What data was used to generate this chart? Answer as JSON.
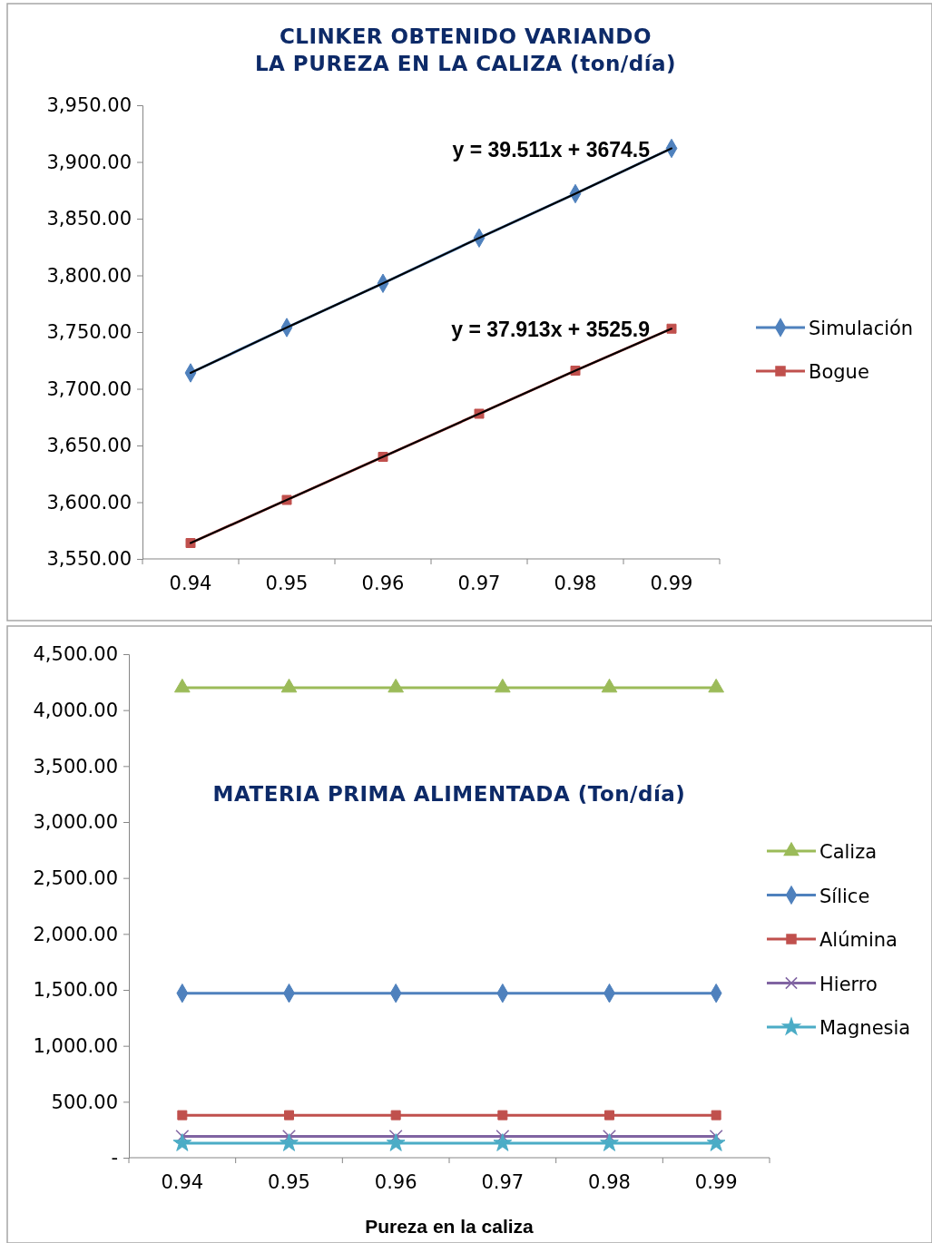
{
  "chart_data": [
    {
      "type": "line",
      "title": "CLINKER OBTENIDO VARIANDO\nLA PUREZA EN LA CALIZA (ton/día)",
      "categories": [
        "0.94",
        "0.95",
        "0.96",
        "0.97",
        "0.98",
        "0.99"
      ],
      "ylim": [
        3550,
        3950
      ],
      "yticks": [
        {
          "value": 3550,
          "label": "3,550.00"
        },
        {
          "value": 3600,
          "label": "3,600.00"
        },
        {
          "value": 3650,
          "label": "3,650.00"
        },
        {
          "value": 3700,
          "label": "3,700.00"
        },
        {
          "value": 3750,
          "label": "3,750.00"
        },
        {
          "value": 3800,
          "label": "3,800.00"
        },
        {
          "value": 3850,
          "label": "3,850.00"
        },
        {
          "value": 3900,
          "label": "3,900.00"
        },
        {
          "value": 3950,
          "label": "3,950.00"
        }
      ],
      "legend": "right",
      "grid": false,
      "series": [
        {
          "name": "Simulación",
          "color": "#4f81bd",
          "marker": "diamond",
          "values": [
            3714,
            3754,
            3793,
            3833,
            3872,
            3912
          ]
        },
        {
          "name": "Bogue",
          "color": "#c0504d",
          "marker": "square",
          "values": [
            3564,
            3602,
            3640,
            3678,
            3716,
            3753
          ]
        },
        {
          "type": "line",
          "color": "#000000",
          "marker": "none",
          "x": [
            "0.94",
            "0.95",
            "0.96",
            "0.97",
            "0.98",
            "0.99"
          ],
          "values": [
            3714,
            3754,
            3793,
            3833,
            3872,
            3912
          ]
        },
        {
          "type": "line",
          "color": "#000000",
          "marker": "none",
          "x": [
            "0.94",
            "0.95",
            "0.96",
            "0.97",
            "0.98",
            "0.99"
          ],
          "values": [
            3564,
            3602,
            3640,
            3678,
            3716,
            3753
          ]
        }
      ],
      "annotations": [
        {
          "text": "y = 39.511x + 3674.5",
          "x": "0.99",
          "y": 3912
        },
        {
          "text": "y = 37.913x + 3525.9",
          "x": "0.99",
          "y": 3753
        }
      ]
    },
    {
      "type": "line",
      "title": "MATERIA PRIMA ALIMENTADA (Ton/día)",
      "xlabel": "Pureza en la caliza",
      "categories": [
        "0.94",
        "0.95",
        "0.96",
        "0.97",
        "0.98",
        "0.99"
      ],
      "ylim": [
        0,
        4500
      ],
      "yticks": [
        {
          "value": 0,
          "label": "-"
        },
        {
          "value": 500,
          "label": "500.00"
        },
        {
          "value": 1000,
          "label": "1,000.00"
        },
        {
          "value": 1500,
          "label": "1,500.00"
        },
        {
          "value": 2000,
          "label": "2,000.00"
        },
        {
          "value": 2500,
          "label": "2,500.00"
        },
        {
          "value": 3000,
          "label": "3,000.00"
        },
        {
          "value": 3500,
          "label": "3,500.00"
        },
        {
          "value": 4000,
          "label": "4,000.00"
        },
        {
          "value": 4500,
          "label": "4,500.00"
        }
      ],
      "legend": "right",
      "grid": false,
      "series": [
        {
          "name": "Caliza",
          "color": "#9bbb59",
          "marker": "triangle",
          "values": [
            4200,
            4200,
            4200,
            4200,
            4200,
            4200
          ]
        },
        {
          "name": "Sílice",
          "color": "#4f81bd",
          "marker": "diamond",
          "values": [
            1470,
            1470,
            1470,
            1470,
            1470,
            1470
          ]
        },
        {
          "name": "Alúmina",
          "color": "#c0504d",
          "marker": "square",
          "values": [
            380,
            380,
            380,
            380,
            380,
            380
          ]
        },
        {
          "name": "Hierro",
          "color": "#8064a2",
          "marker": "cross",
          "values": [
            190,
            190,
            190,
            190,
            190,
            190
          ]
        },
        {
          "name": "Magnesia",
          "color": "#4bacc6",
          "marker": "star",
          "values": [
            130,
            130,
            130,
            130,
            130,
            130
          ]
        }
      ]
    }
  ]
}
